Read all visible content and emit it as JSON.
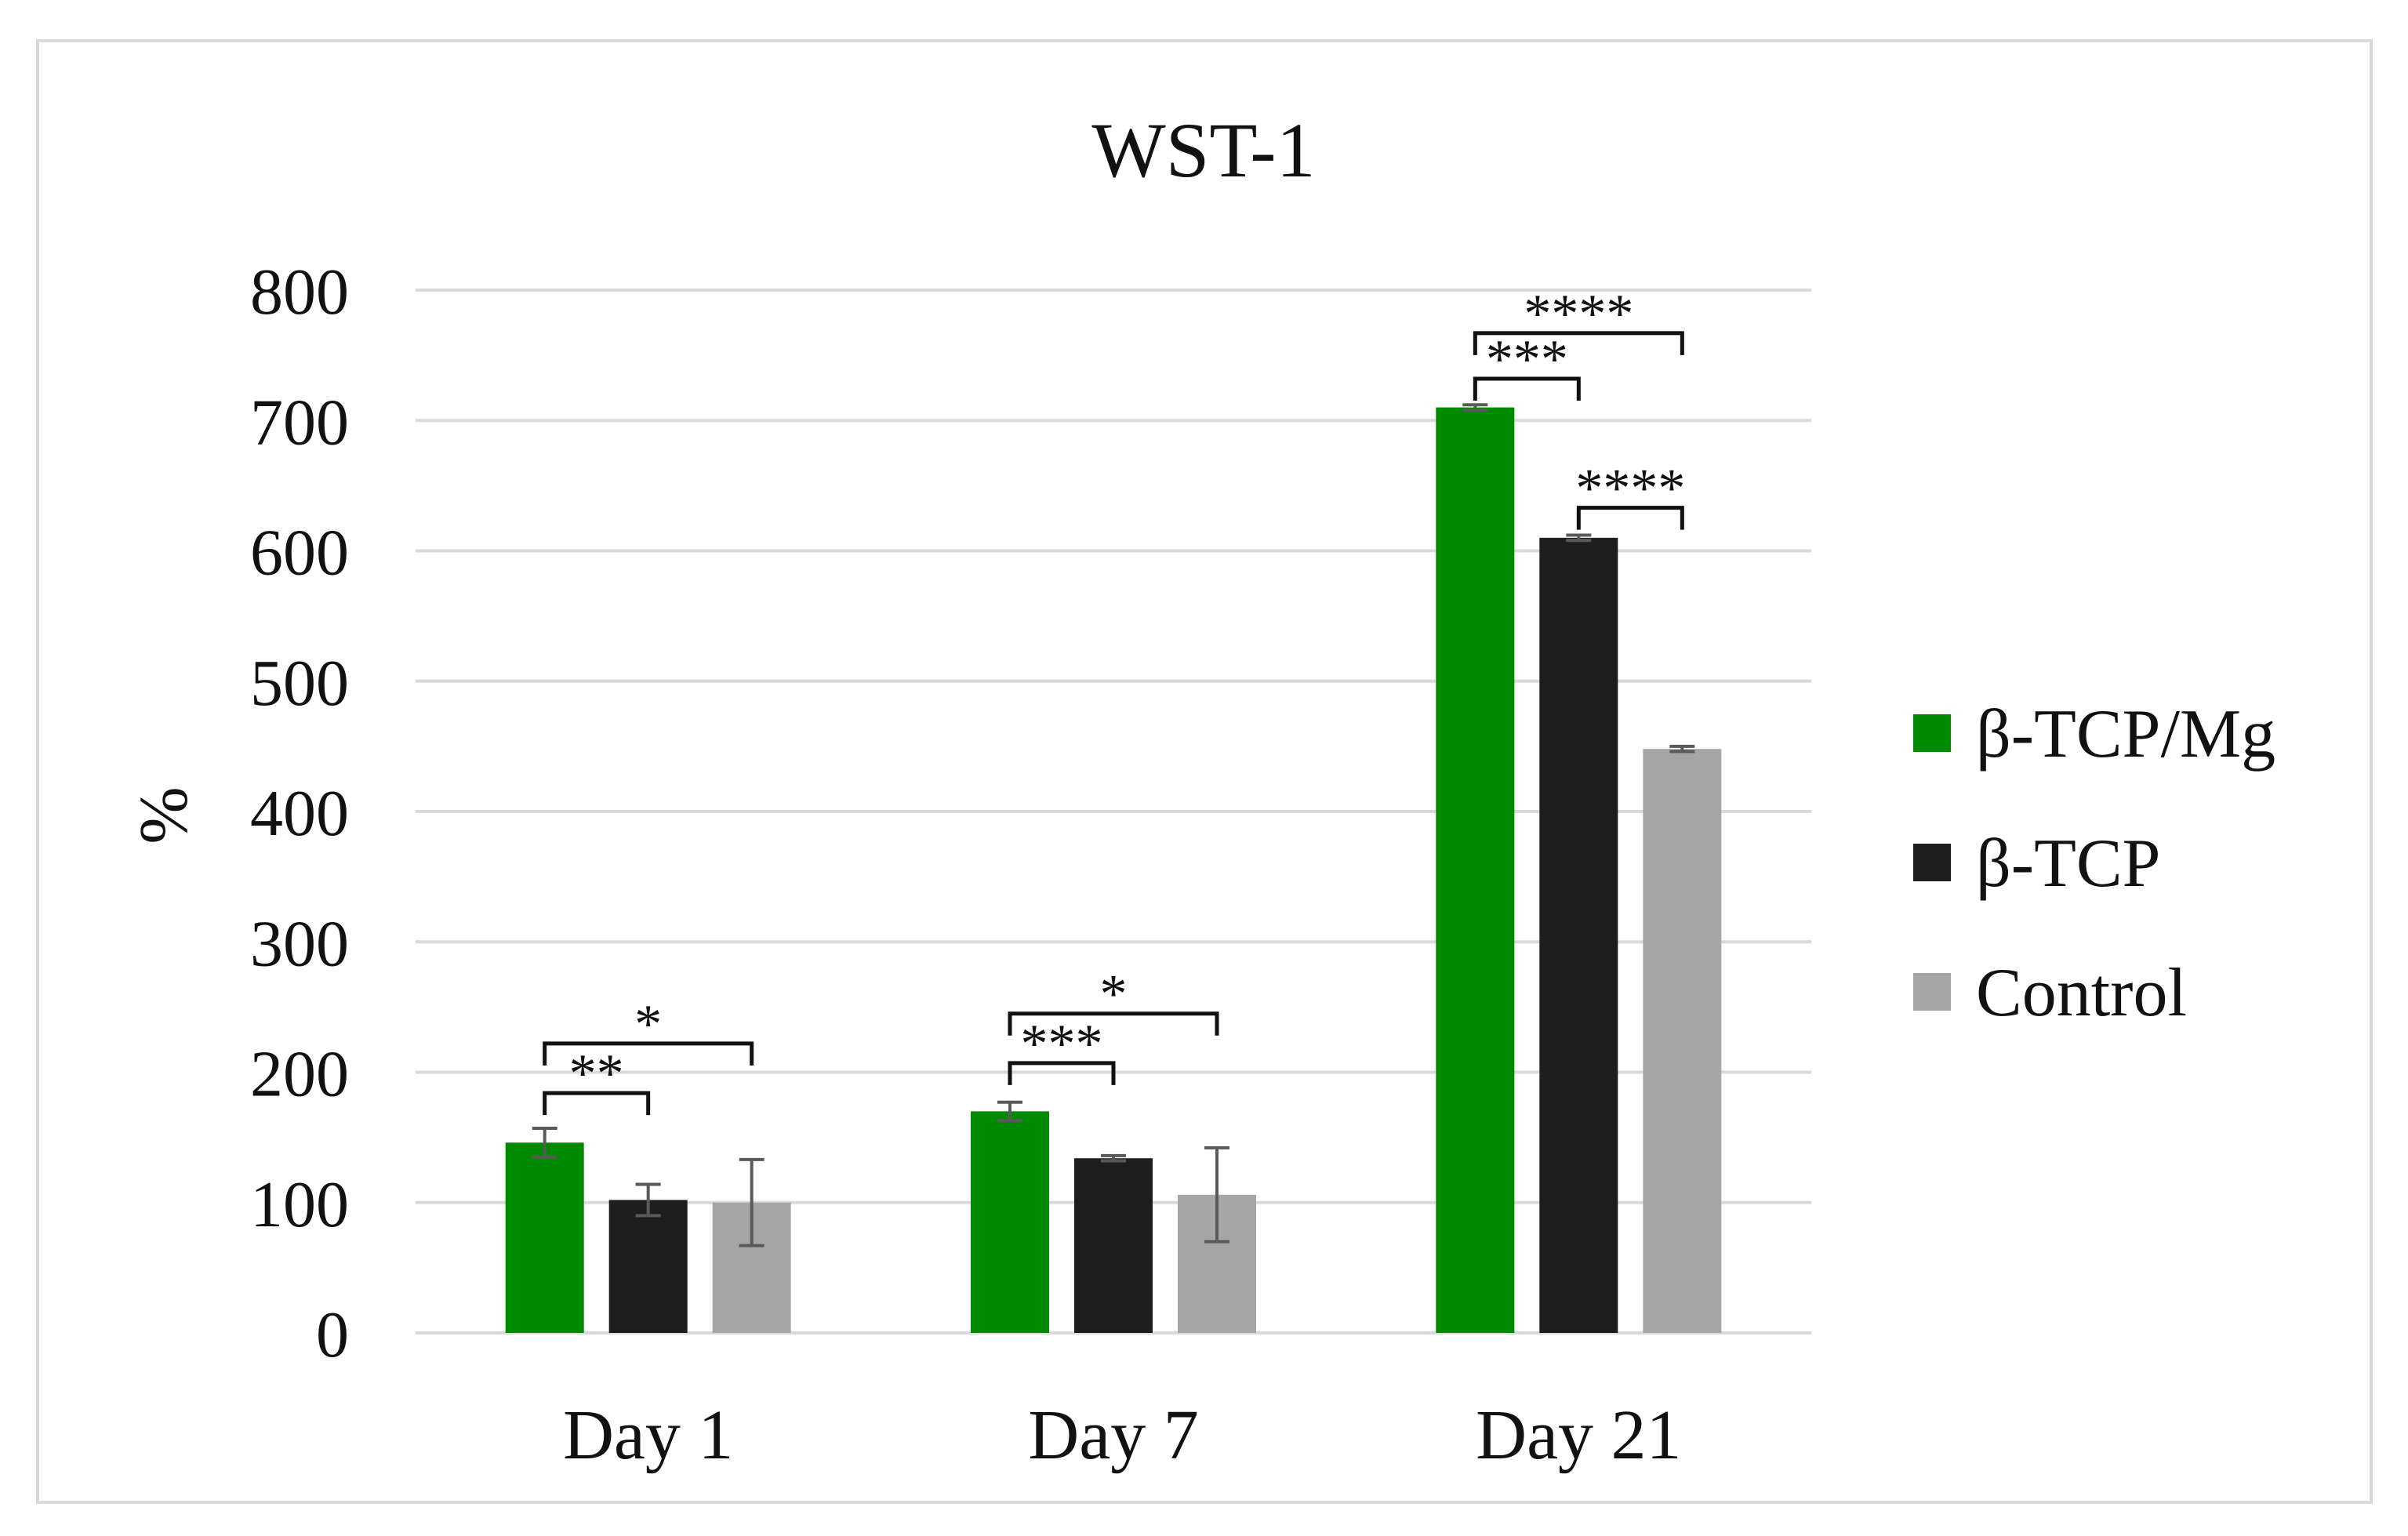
{
  "chart_data": {
    "type": "bar",
    "title": "WST-1",
    "xlabel": "",
    "ylabel": "%",
    "ylim": [
      0,
      800
    ],
    "yticks": [
      0,
      100,
      200,
      300,
      400,
      500,
      600,
      700,
      800
    ],
    "grid": true,
    "legend_position": "right",
    "categories": [
      "Day 1",
      "Day 7",
      "Day 21"
    ],
    "series": [
      {
        "name": "β-TCP/Mg",
        "color": "#008a00",
        "values": [
          146,
          170,
          710
        ],
        "errors": [
          11,
          7,
          2
        ]
      },
      {
        "name": "β-TCP",
        "color": "#1e1e1e",
        "values": [
          102,
          134,
          610
        ],
        "errors": [
          12,
          2,
          2
        ]
      },
      {
        "name": "Control",
        "color": "#a6a6a6",
        "values": [
          100,
          106,
          448
        ],
        "errors": [
          33,
          36,
          2
        ]
      }
    ],
    "significance": [
      {
        "category": 0,
        "from": 0,
        "to": 2,
        "label": "*",
        "y": 222,
        "level": 1
      },
      {
        "category": 0,
        "from": 0,
        "to": 1,
        "label": "**",
        "y": 184,
        "level": 0
      },
      {
        "category": 1,
        "from": 0,
        "to": 2,
        "label": "*",
        "y": 245,
        "level": 1
      },
      {
        "category": 1,
        "from": 0,
        "to": 1,
        "label": "***",
        "y": 207,
        "level": 0
      },
      {
        "category": 2,
        "from": 0,
        "to": 2,
        "label": "****",
        "y": 767,
        "level": 1
      },
      {
        "category": 2,
        "from": 0,
        "to": 1,
        "label": "***",
        "y": 732,
        "level": 0
      },
      {
        "category": 2,
        "from": 1,
        "to": 2,
        "label": "****",
        "y": 633,
        "level": 0
      }
    ]
  }
}
